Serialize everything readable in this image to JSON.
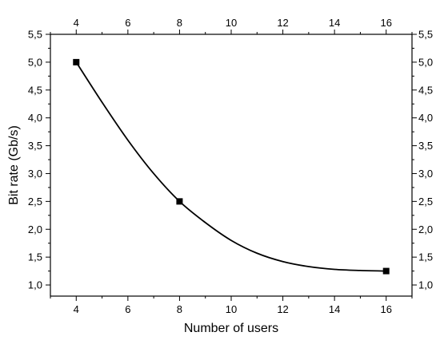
{
  "chart_data": {
    "type": "line",
    "xlabel": "Number of users",
    "ylabel": "Bit rate (Gb/s)",
    "xlim": [
      3,
      17
    ],
    "ylim": [
      0.8,
      5.5
    ],
    "x_ticks": [
      "4",
      "6",
      "8",
      "10",
      "12",
      "14",
      "16"
    ],
    "y_ticks": [
      "1,0",
      "1,5",
      "2,0",
      "2,5",
      "3,0",
      "3,5",
      "4,0",
      "4,5",
      "5,0",
      "5,5"
    ],
    "mirror_top_axis": true,
    "mirror_right_axis": true,
    "grid": false,
    "series": [
      {
        "marker": "square",
        "points": [
          {
            "x": 4,
            "y": 5.0
          },
          {
            "x": 8,
            "y": 2.5
          },
          {
            "x": 16,
            "y": 1.25
          }
        ]
      }
    ],
    "fit_curve": {
      "style": "smooth",
      "x": [
        4,
        5,
        6,
        7,
        8,
        9,
        10,
        11,
        12,
        13,
        14,
        15,
        16
      ],
      "y": [
        5.0,
        4.28,
        3.6,
        3.0,
        2.5,
        2.12,
        1.8,
        1.57,
        1.42,
        1.33,
        1.28,
        1.26,
        1.25
      ]
    },
    "colors": {
      "line": "#000000",
      "marker": "#000000",
      "axis": "#000000"
    }
  }
}
